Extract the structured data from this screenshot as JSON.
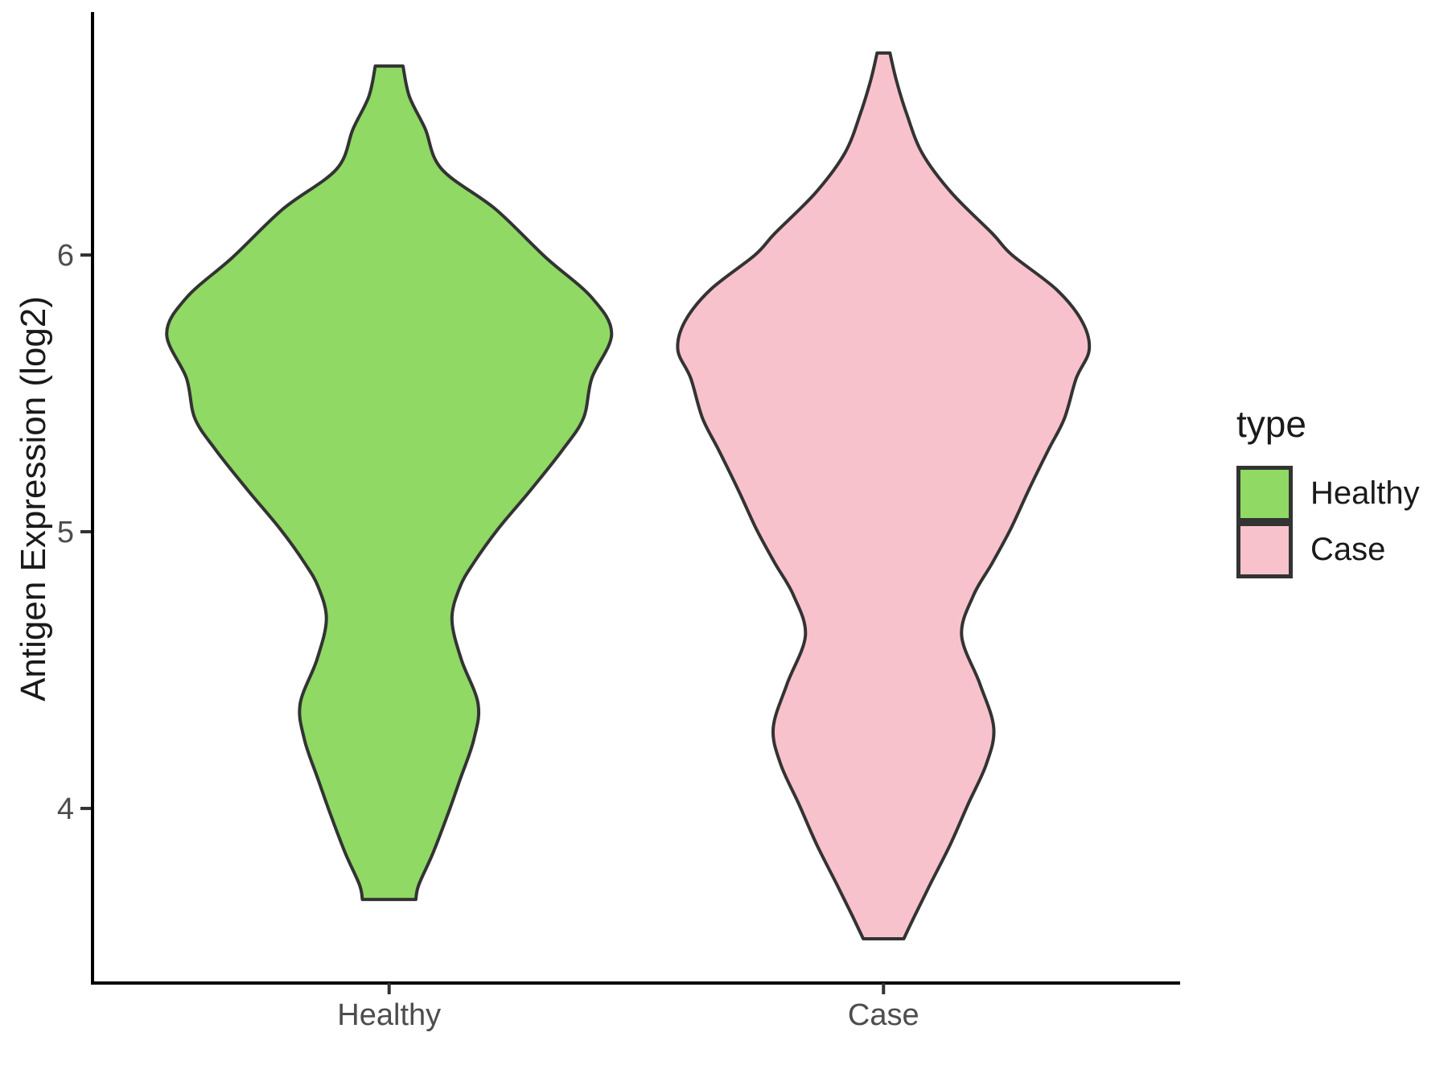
{
  "figure": {
    "background": "#ffffff",
    "axis_line_color": "#000000",
    "tick_color": "#333333",
    "tick_label_color": "#4d4d4d",
    "title_color": "#1a1a1a"
  },
  "legend": {
    "title": "type",
    "items": [
      {
        "label": "Healthy",
        "fill": "#8FD964",
        "border": "#333333"
      },
      {
        "label": "Case",
        "fill": "#F8C2CC",
        "border": "#333333"
      }
    ]
  },
  "chart_data": {
    "type": "violin",
    "title": "",
    "xlabel": "",
    "ylabel": "Antigen Expression (log2)",
    "categories": [
      "Healthy",
      "Case"
    ],
    "yticks": [
      4,
      5,
      6
    ],
    "ylim": [
      3.369,
      6.878
    ],
    "x_domain": [
      0.4,
      2.6
    ],
    "grid": false,
    "legend_position": "right",
    "series": [
      {
        "name": "Healthy",
        "position": 1,
        "fill": "#8FD964",
        "stroke": "#333333",
        "value_range": [
          3.671,
          6.683
        ],
        "profile": [
          [
            6.683,
            0.028
          ],
          [
            6.573,
            0.041
          ],
          [
            6.456,
            0.073
          ],
          [
            6.311,
            0.106
          ],
          [
            6.166,
            0.215
          ],
          [
            5.991,
            0.317
          ],
          [
            5.846,
            0.41
          ],
          [
            5.715,
            0.45
          ],
          [
            5.555,
            0.41
          ],
          [
            5.41,
            0.393
          ],
          [
            5.294,
            0.35
          ],
          [
            5.148,
            0.285
          ],
          [
            5.009,
            0.22
          ],
          [
            4.887,
            0.171
          ],
          [
            4.799,
            0.143
          ],
          [
            4.683,
            0.127
          ],
          [
            4.538,
            0.146
          ],
          [
            4.378,
            0.18
          ],
          [
            4.247,
            0.171
          ],
          [
            4.102,
            0.143
          ],
          [
            3.985,
            0.12
          ],
          [
            3.84,
            0.089
          ],
          [
            3.724,
            0.06
          ],
          [
            3.671,
            0.054
          ]
        ]
      },
      {
        "name": "Case",
        "position": 2,
        "fill": "#F8C2CC",
        "stroke": "#333333",
        "value_range": [
          3.529,
          6.73
        ],
        "profile": [
          [
            6.73,
            0.013
          ],
          [
            6.631,
            0.026
          ],
          [
            6.515,
            0.046
          ],
          [
            6.369,
            0.078
          ],
          [
            6.224,
            0.138
          ],
          [
            6.078,
            0.22
          ],
          [
            6.0,
            0.26
          ],
          [
            5.875,
            0.35
          ],
          [
            5.759,
            0.402
          ],
          [
            5.657,
            0.416
          ],
          [
            5.555,
            0.39
          ],
          [
            5.41,
            0.366
          ],
          [
            5.294,
            0.333
          ],
          [
            5.148,
            0.293
          ],
          [
            5.009,
            0.257
          ],
          [
            4.887,
            0.22
          ],
          [
            4.77,
            0.182
          ],
          [
            4.625,
            0.158
          ],
          [
            4.45,
            0.195
          ],
          [
            4.291,
            0.223
          ],
          [
            4.16,
            0.208
          ],
          [
            4.015,
            0.171
          ],
          [
            3.869,
            0.135
          ],
          [
            3.724,
            0.094
          ],
          [
            3.608,
            0.062
          ],
          [
            3.529,
            0.041
          ]
        ]
      }
    ]
  }
}
